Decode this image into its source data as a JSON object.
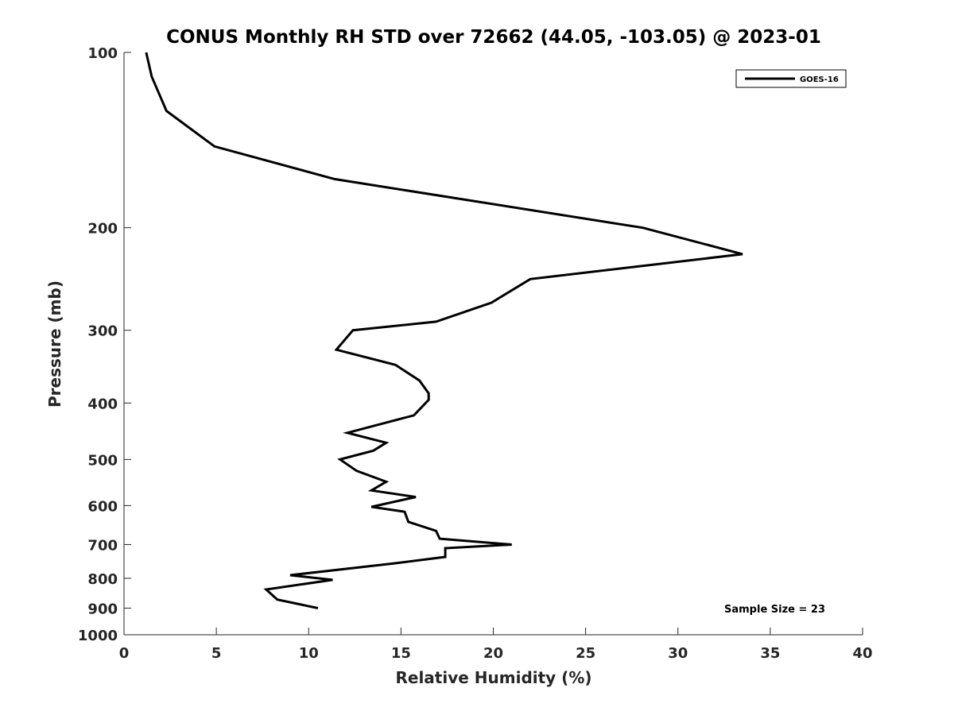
{
  "chart_data": {
    "type": "line",
    "title": "CONUS Monthly RH STD over 72662 (44.05, -103.05) @ 2023-01",
    "xlabel": "Relative Humidity (%)",
    "ylabel": "Pressure (mb)",
    "xlim": [
      0,
      40
    ],
    "ylim": [
      100,
      1000
    ],
    "y_scale": "log",
    "y_reversed": true,
    "x_ticks": [
      "0",
      "5",
      "10",
      "15",
      "20",
      "25",
      "30",
      "35",
      "40"
    ],
    "y_ticks": [
      "100",
      "200",
      "300",
      "400",
      "500",
      "600",
      "700",
      "800",
      "900",
      "1000"
    ],
    "legend_position": "top-right",
    "annotation": "Sample Size = 23",
    "series": [
      {
        "name": "GOES-16",
        "color": "#000000",
        "x": [
          1.2,
          1.5,
          2.3,
          4.9,
          11.4,
          28.1,
          33.5,
          22.0,
          19.9,
          16.9,
          12.4,
          11.5,
          14.7,
          16.0,
          16.5,
          16.5,
          15.7,
          12.1,
          14.2,
          13.5,
          11.7,
          12.6,
          14.2,
          13.4,
          15.8,
          13.4,
          15.2,
          15.4,
          16.9,
          17.1,
          21.0,
          17.4,
          17.4,
          14.5,
          9.0,
          11.3,
          7.7,
          8.3,
          10.5
        ],
        "y": [
          100,
          110,
          126,
          145,
          165,
          200,
          222,
          245,
          269,
          290,
          300,
          324,
          344,
          366,
          385,
          395,
          420,
          450,
          468,
          483,
          500,
          523,
          546,
          565,
          580,
          603,
          615,
          640,
          663,
          684,
          700,
          710,
          735,
          755,
          790,
          805,
          836,
          870,
          900
        ]
      }
    ]
  }
}
